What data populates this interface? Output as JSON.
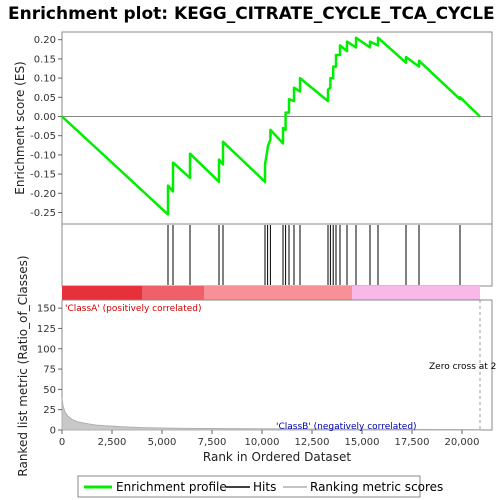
{
  "chart_data": {
    "title": "Enrichment plot: KEGG_CITRATE_CYCLE_TCA_CYCLE",
    "es_panel": {
      "type": "line",
      "ylabel": "Enrichment score (ES)",
      "ylim": [
        -0.28,
        0.22
      ],
      "yticks": [
        -0.25,
        -0.2,
        -0.15,
        -0.1,
        -0.05,
        0.0,
        0.05,
        0.1,
        0.15,
        0.2
      ],
      "ytick_labels": [
        "-0.25",
        "-0.20",
        "-0.15",
        "-0.10",
        "-0.05",
        "0.00",
        "0.05",
        "0.10",
        "0.15",
        "0.20"
      ],
      "series": [
        {
          "name": "Enrichment profile",
          "color": "#00ee00",
          "x": [
            0,
            5300,
            5300,
            5550,
            5550,
            6400,
            6400,
            7850,
            7850,
            8050,
            8050,
            10150,
            10150,
            10280,
            10280,
            10420,
            10420,
            11050,
            11050,
            11180,
            11180,
            11350,
            11350,
            11600,
            11600,
            11900,
            11900,
            13300,
            13300,
            13420,
            13420,
            13560,
            13560,
            13700,
            13700,
            13900,
            13900,
            14250,
            14250,
            14700,
            14700,
            15400,
            15400,
            15800,
            15800,
            17200,
            17200,
            17850,
            17850,
            19900,
            19900,
            20900
          ],
          "y": [
            0.0,
            -0.255,
            -0.18,
            -0.195,
            -0.12,
            -0.16,
            -0.097,
            -0.17,
            -0.112,
            -0.125,
            -0.066,
            -0.17,
            -0.125,
            -0.085,
            -0.08,
            -0.06,
            -0.035,
            -0.07,
            -0.03,
            -0.035,
            0.01,
            0.01,
            0.045,
            0.04,
            0.075,
            0.065,
            0.1,
            0.04,
            0.07,
            0.075,
            0.1,
            0.1,
            0.13,
            0.13,
            0.16,
            0.16,
            0.185,
            0.17,
            0.195,
            0.18,
            0.205,
            0.18,
            0.195,
            0.185,
            0.205,
            0.14,
            0.155,
            0.13,
            0.145,
            0.045,
            0.05,
            0.0
          ]
        }
      ]
    },
    "hits_panel": {
      "name": "Hits",
      "color": "#000000",
      "positions": [
        5300,
        5550,
        6400,
        7850,
        8050,
        10150,
        10280,
        10420,
        11050,
        11180,
        11350,
        11600,
        11900,
        13300,
        13420,
        13560,
        13700,
        13900,
        14250,
        14700,
        15400,
        15800,
        17200,
        17850,
        19900
      ],
      "gradient_bands": [
        {
          "from": 0,
          "to": 4000,
          "color": "#e8303a"
        },
        {
          "from": 4000,
          "to": 7100,
          "color": "#f06068"
        },
        {
          "from": 7100,
          "to": 14500,
          "color": "#f89098"
        },
        {
          "from": 14500,
          "to": 20900,
          "color": "#f8b8e8"
        }
      ]
    },
    "metric_panel": {
      "type": "area",
      "name": "Ranking metric scores",
      "color": "#b0b0b0",
      "xlabel": "Rank in Ordered Dataset",
      "ylabel": "Ranked list metric (Ratio_of_Classes)",
      "ylim": [
        0,
        160
      ],
      "yticks": [
        0,
        25,
        50,
        75,
        100,
        125,
        150
      ],
      "ytick_labels": [
        "0",
        "25",
        "50",
        "75",
        "100",
        "125",
        "150"
      ],
      "x": [
        0,
        50,
        150,
        300,
        500,
        800,
        1200,
        1700,
        2300,
        3000,
        4000,
        6000,
        10000,
        15000,
        20900
      ],
      "values": [
        40,
        30,
        22,
        17,
        13,
        10,
        8,
        6,
        5,
        4,
        3,
        2,
        1.5,
        1,
        0.5
      ],
      "zero_cross_label": "Zero cross at 2",
      "zero_cross_x": 20900,
      "class_a_label": "'ClassA' (positively correlated)",
      "class_b_label": "'ClassB' (negatively correlated)"
    },
    "xlim": [
      0,
      21500
    ],
    "xticks": [
      0,
      2500,
      5000,
      7500,
      10000,
      12500,
      15000,
      17500,
      20000
    ],
    "xtick_labels": [
      "0",
      "2,500",
      "5,000",
      "7,500",
      "10,000",
      "12,500",
      "15,000",
      "17,500",
      "20,000"
    ],
    "legend": {
      "placement": "bottom",
      "items": [
        {
          "label": "Enrichment profile",
          "color": "#00ee00"
        },
        {
          "label": "Hits",
          "color": "#000000"
        },
        {
          "label": "Ranking metric scores",
          "color": "#b0b0b0"
        }
      ]
    }
  }
}
